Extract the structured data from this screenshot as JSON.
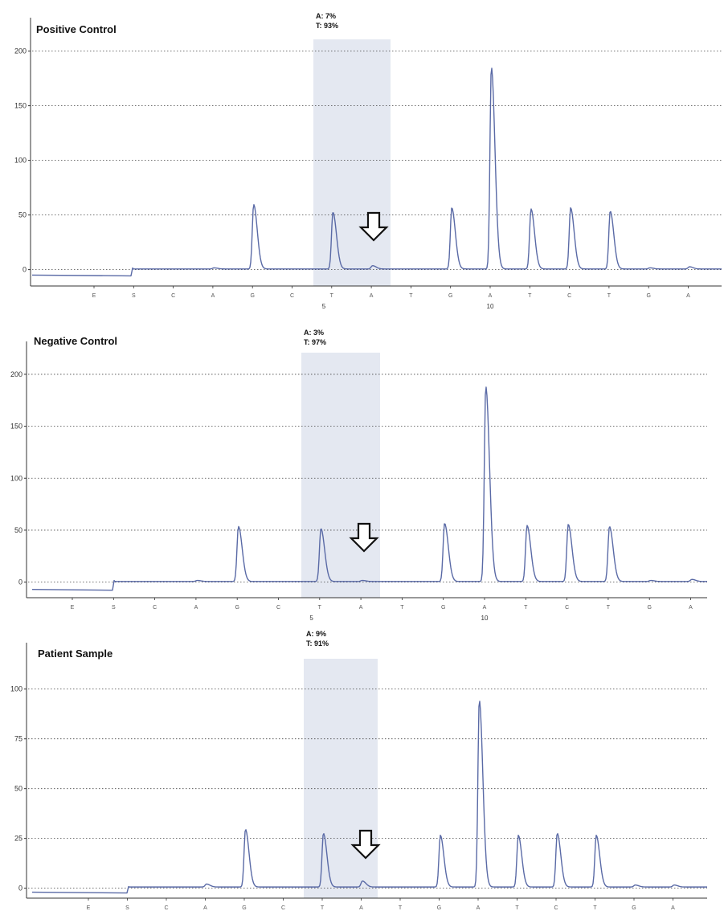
{
  "chart_data": [
    {
      "type": "line",
      "title": "Positive Control",
      "allele_labels": [
        "A: 7%",
        "T: 93%"
      ],
      "yticks": [
        0,
        50,
        100,
        150,
        200
      ],
      "ylim": [
        -15,
        210
      ],
      "grid": "horizontal dotted",
      "dispensation_order": [
        "E",
        "S",
        "C",
        "A",
        "G",
        "C",
        "T",
        "A",
        "T",
        "G",
        "A",
        "T",
        "C",
        "T",
        "G",
        "A"
      ],
      "position_labels": [
        {
          "after_index": 6,
          "label": "5"
        },
        {
          "after_index": 10,
          "label": "10"
        }
      ],
      "highlight_indices": [
        6,
        7
      ],
      "arrow_index": 7,
      "pre_baseline": -5,
      "peaks": [
        0,
        0,
        0,
        1,
        59,
        0,
        52,
        3,
        0,
        56,
        185,
        55,
        56,
        53,
        1,
        2
      ]
    },
    {
      "type": "line",
      "title": "Negative Control",
      "allele_labels": [
        "A: 3%",
        "T: 97%"
      ],
      "yticks": [
        0,
        50,
        100,
        150,
        200
      ],
      "ylim": [
        -15,
        210
      ],
      "grid": "horizontal dotted",
      "dispensation_order": [
        "E",
        "S",
        "C",
        "A",
        "G",
        "C",
        "T",
        "A",
        "T",
        "G",
        "A",
        "T",
        "C",
        "T",
        "G",
        "A"
      ],
      "position_labels": [
        {
          "after_index": 6,
          "label": "5"
        },
        {
          "after_index": 10,
          "label": "10"
        }
      ],
      "highlight_indices": [
        6,
        7
      ],
      "arrow_index": 7,
      "pre_baseline": -7,
      "peaks": [
        0,
        0,
        0,
        1,
        53,
        0,
        51,
        1,
        0,
        56,
        188,
        54,
        55,
        53,
        1,
        2
      ]
    },
    {
      "type": "line",
      "title": "Patient Sample",
      "allele_labels": [
        "A: 9%",
        "T: 91%"
      ],
      "yticks": [
        0,
        25,
        50,
        75,
        100
      ],
      "ylim": [
        -5,
        112
      ],
      "grid": "horizontal dotted",
      "dispensation_order": [
        "E",
        "S",
        "C",
        "A",
        "G",
        "C",
        "T",
        "A",
        "T",
        "G",
        "A",
        "T",
        "C",
        "T",
        "G",
        "A"
      ],
      "position_labels": [
        {
          "after_index": 6,
          "label": "5"
        },
        {
          "after_index": 10,
          "label": "10"
        }
      ],
      "highlight_indices": [
        6,
        7
      ],
      "arrow_index": 7,
      "pre_baseline": -2,
      "peaks": [
        0,
        0,
        0,
        1.5,
        29,
        0,
        27,
        3,
        0,
        26,
        94,
        26,
        27,
        26,
        1,
        1
      ]
    }
  ],
  "colors": {
    "trace": "#5a6aa6",
    "highlight": "#e4e8f1",
    "grid": "#444444",
    "axis": "#333333"
  }
}
